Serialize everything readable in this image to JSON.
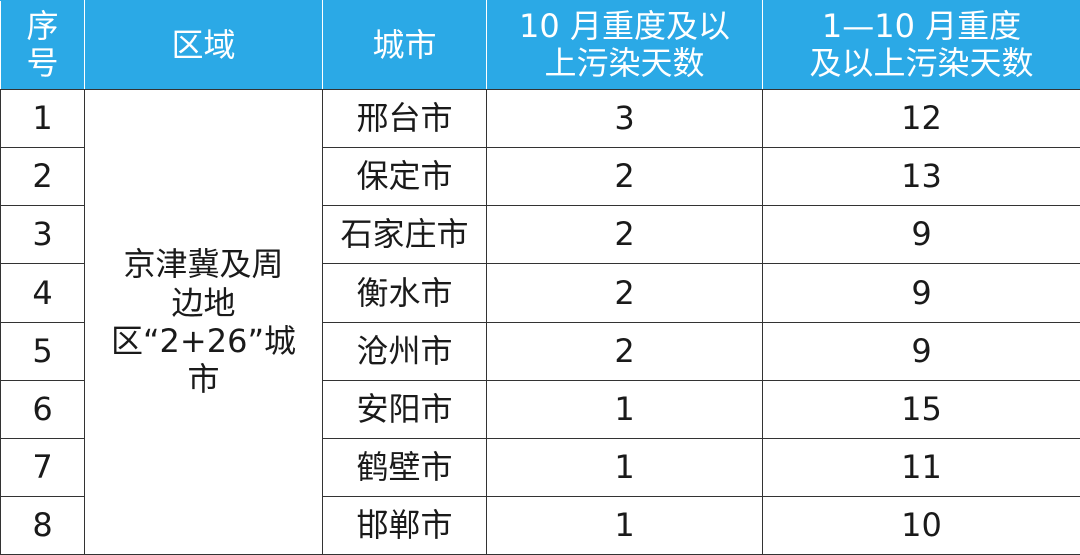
{
  "table": {
    "header": [
      "序号",
      "区域",
      "城市",
      "10 月重度及以上污染天数",
      "1—10 月重度及以上污染天数"
    ],
    "region": "京津冀及周边地区“2+26”城市",
    "rows": [
      [
        1,
        "邢台市",
        3,
        12
      ],
      [
        2,
        "保定市",
        2,
        13
      ],
      [
        3,
        "石家庄市",
        2,
        9
      ],
      [
        4,
        "衡水市",
        2,
        9
      ],
      [
        5,
        "沧州市",
        2,
        9
      ],
      [
        6,
        "安阳市",
        1,
        15
      ],
      [
        7,
        "鹤壁市",
        1,
        11
      ],
      [
        8,
        "邯郸市",
        1,
        10
      ]
    ]
  }
}
